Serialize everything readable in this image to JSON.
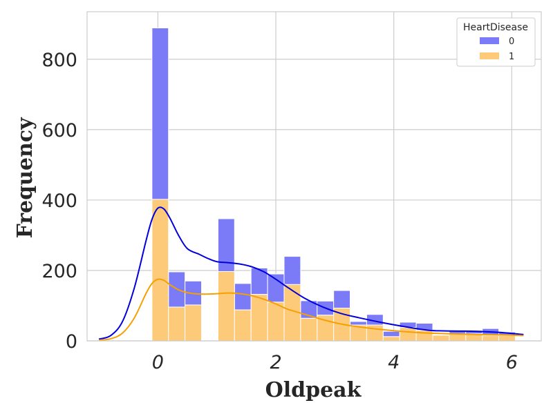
{
  "chart_data": {
    "type": "bar",
    "stacked": true,
    "xlabel": "Oldpeak",
    "ylabel": "Frequency",
    "xlim": [
      -1.2,
      6.5
    ],
    "ylim": [
      0,
      935
    ],
    "xticks": [
      0,
      2,
      4,
      6
    ],
    "yticks": [
      0,
      200,
      400,
      600,
      800
    ],
    "grid": true,
    "legend": {
      "title": "HeartDisease",
      "placement": "top-right"
    },
    "bin_edges": [
      -0.1,
      0.18,
      0.46,
      0.74,
      1.02,
      1.3,
      1.58,
      1.86,
      2.14,
      2.42,
      2.7,
      2.98,
      3.26,
      3.54,
      3.82,
      4.1,
      4.38,
      4.66,
      4.94,
      5.22,
      5.5,
      5.78,
      6.06
    ],
    "series": [
      {
        "name": "0",
        "color": "#7b7bf8",
        "kde_color": "#0000dd",
        "values": [
          487,
          100,
          68,
          0,
          150,
          75,
          75,
          80,
          80,
          50,
          40,
          50,
          10,
          30,
          15,
          15,
          20,
          0,
          10,
          10,
          20,
          10
        ]
      },
      {
        "name": "1",
        "color": "#fdca7a",
        "kde_color": "#f5a000",
        "values": [
          402,
          96,
          102,
          0,
          197,
          88,
          132,
          110,
          160,
          64,
          73,
          93,
          45,
          45,
          12,
          38,
          30,
          16,
          20,
          20,
          15,
          15
        ]
      }
    ],
    "kde": {
      "x": [
        -1.0,
        -0.8,
        -0.6,
        -0.4,
        -0.2,
        -0.1,
        0.0,
        0.1,
        0.2,
        0.35,
        0.5,
        0.7,
        0.85,
        1.0,
        1.2,
        1.4,
        1.6,
        1.8,
        2.0,
        2.2,
        2.5,
        2.8,
        3.1,
        3.4,
        3.8,
        4.2,
        4.6,
        5.0,
        5.4,
        5.8,
        6.2
      ],
      "total": [
        5,
        15,
        55,
        150,
        285,
        345,
        377,
        375,
        350,
        300,
        262,
        246,
        234,
        225,
        222,
        218,
        210,
        196,
        175,
        152,
        120,
        96,
        78,
        66,
        52,
        40,
        30,
        28,
        27,
        24,
        18
      ],
      "class1": [
        2,
        6,
        22,
        65,
        135,
        163,
        175,
        172,
        160,
        145,
        137,
        133,
        133,
        134,
        136,
        134,
        128,
        118,
        105,
        90,
        75,
        60,
        48,
        40,
        32,
        26,
        22,
        20,
        18,
        17,
        15
      ]
    }
  }
}
